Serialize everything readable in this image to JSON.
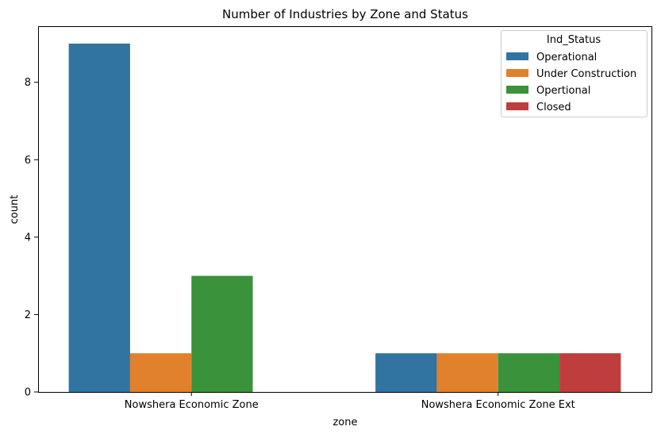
{
  "chart_data": {
    "type": "bar",
    "title": "Number of Industries by Zone and Status",
    "xlabel": "zone",
    "ylabel": "count",
    "categories": [
      "Nowshera Economic Zone",
      "Nowshera Economic Zone Ext"
    ],
    "ylim": [
      0,
      9.45
    ],
    "yticks": [
      0,
      2,
      4,
      6,
      8
    ],
    "grid": false,
    "legend": {
      "title": "Ind_Status",
      "position": "top-right"
    },
    "series": [
      {
        "name": "Operational",
        "color": "#3274a1",
        "values": [
          9,
          1
        ]
      },
      {
        "name": "Under Construction",
        "color": "#e1812c",
        "values": [
          1,
          1
        ]
      },
      {
        "name": "Opertional",
        "color": "#3a923a",
        "values": [
          3,
          1
        ]
      },
      {
        "name": "Closed",
        "color": "#c03d3e",
        "values": [
          0,
          1
        ]
      }
    ]
  }
}
